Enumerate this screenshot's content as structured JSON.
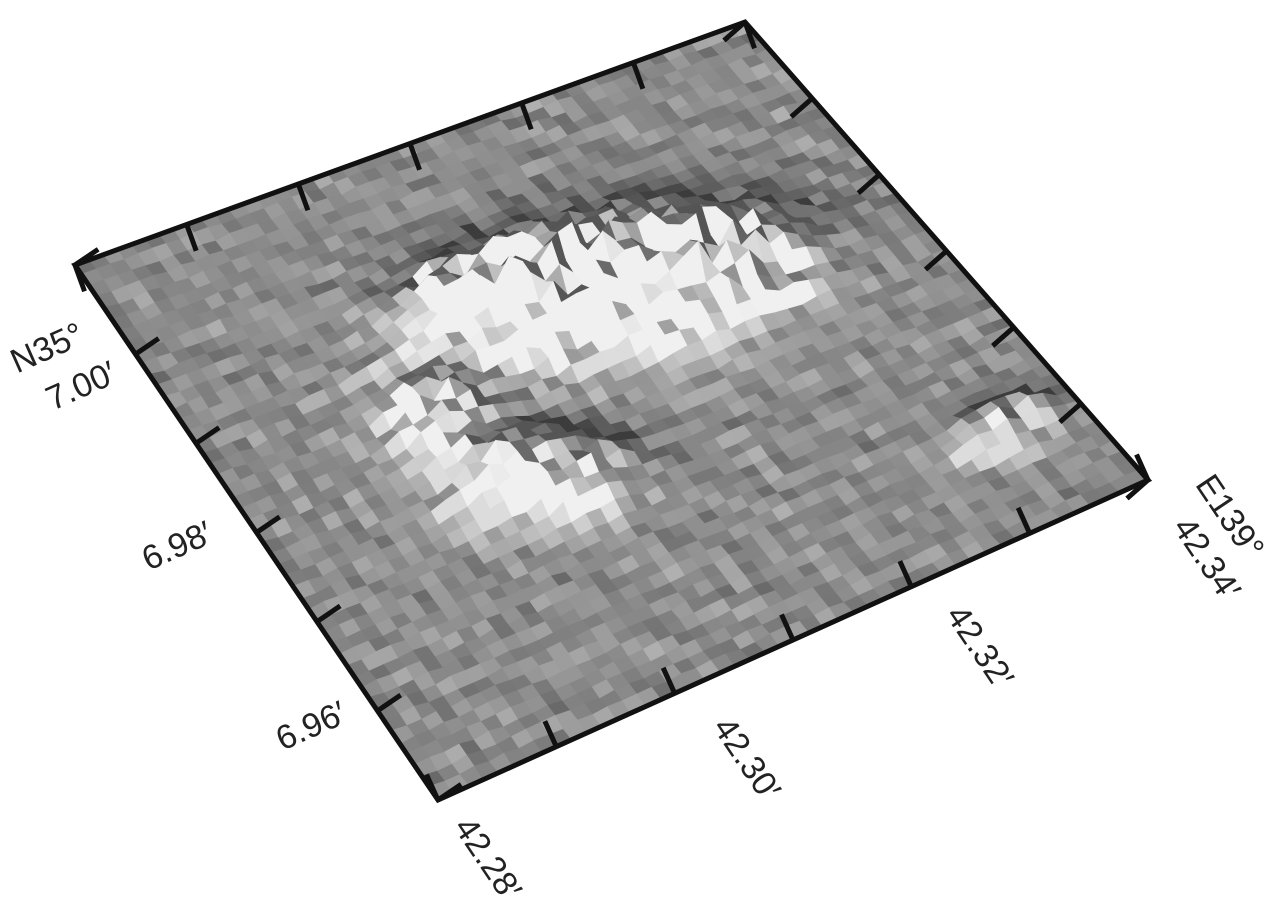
{
  "left_axis": {
    "hemisphere": "N35°",
    "labels": [
      "7.00′",
      "6.98′",
      "6.96′"
    ]
  },
  "bottom_axis": {
    "hemisphere": "E139°",
    "labels": [
      "42.28′",
      "42.30′",
      "42.32′",
      "42.34′"
    ]
  }
}
